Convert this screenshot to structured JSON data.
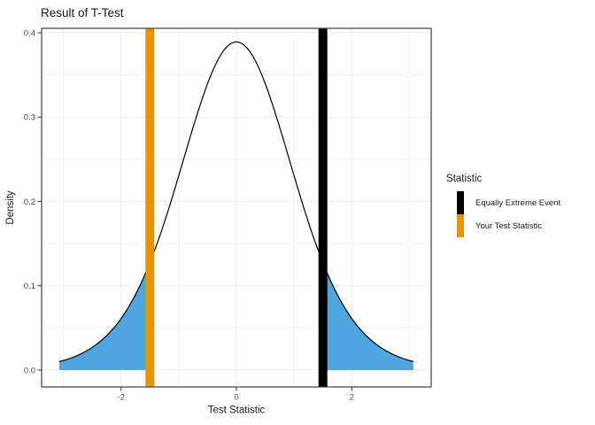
{
  "title": "Result of T-Test",
  "legend": {
    "title": "Statistic",
    "items": [
      {
        "label": "Equally Extreme Event",
        "color": "#000000"
      },
      {
        "label": "Your Test Statistic",
        "color": "#E8930C"
      }
    ]
  },
  "colors": {
    "tail_fill": "#4FA5DE",
    "curve": "#000000",
    "panel_border": "#3c3c3c",
    "grid_major": "#ebebeb",
    "grid_minor": "#f4f4f4",
    "tick_mark": "#333333",
    "tick_label": "#4d4d4d",
    "axis_title": "#1a1a1a"
  },
  "chart_data": {
    "type": "area",
    "title": "Result of T-Test",
    "xlabel": "Test Statistic",
    "ylabel": "Density",
    "x_ticks": [
      -2,
      0,
      2
    ],
    "x_minor_ticks": [
      -3,
      -1,
      1,
      3
    ],
    "y_ticks": [
      0.0,
      0.1,
      0.2,
      0.3,
      0.4
    ],
    "y_minor_ticks": [
      0.05,
      0.15,
      0.25,
      0.35
    ],
    "xlim": [
      -3.07,
      3.07
    ],
    "ylim": [
      0,
      0.4
    ],
    "grid": true,
    "legend_position": "right",
    "distribution": {
      "name": "t",
      "df": 10,
      "peak_density": 0.3891
    },
    "curve_points": [
      [
        -3.07,
        0.0101
      ],
      [
        -3.0,
        0.0114
      ],
      [
        -2.75,
        0.0176
      ],
      [
        -2.5,
        0.0269
      ],
      [
        -2.25,
        0.0409
      ],
      [
        -2.0,
        0.0612
      ],
      [
        -1.75,
        0.0895
      ],
      [
        -1.5,
        0.1274
      ],
      [
        -1.25,
        0.1751
      ],
      [
        -1.0,
        0.2304
      ],
      [
        -0.75,
        0.288
      ],
      [
        -0.5,
        0.3397
      ],
      [
        -0.25,
        0.376
      ],
      [
        0.0,
        0.3891
      ],
      [
        0.25,
        0.376
      ],
      [
        0.5,
        0.3397
      ],
      [
        0.75,
        0.288
      ],
      [
        1.0,
        0.2304
      ],
      [
        1.25,
        0.1751
      ],
      [
        1.5,
        0.1274
      ],
      [
        1.75,
        0.0895
      ],
      [
        2.0,
        0.0612
      ],
      [
        2.25,
        0.0409
      ],
      [
        2.5,
        0.0269
      ],
      [
        2.75,
        0.0176
      ],
      [
        3.0,
        0.0114
      ],
      [
        3.07,
        0.0101
      ]
    ],
    "shaded_regions": [
      {
        "from": -3.07,
        "to": -1.5,
        "fill": "#4FA5DE"
      },
      {
        "from": 1.5,
        "to": 3.07,
        "fill": "#4FA5DE"
      }
    ],
    "vlines": [
      {
        "x": 1.5,
        "color": "#000000",
        "label": "Equally Extreme Event"
      },
      {
        "x": -1.5,
        "color": "#E8930C",
        "label": "Your Test Statistic"
      }
    ]
  }
}
